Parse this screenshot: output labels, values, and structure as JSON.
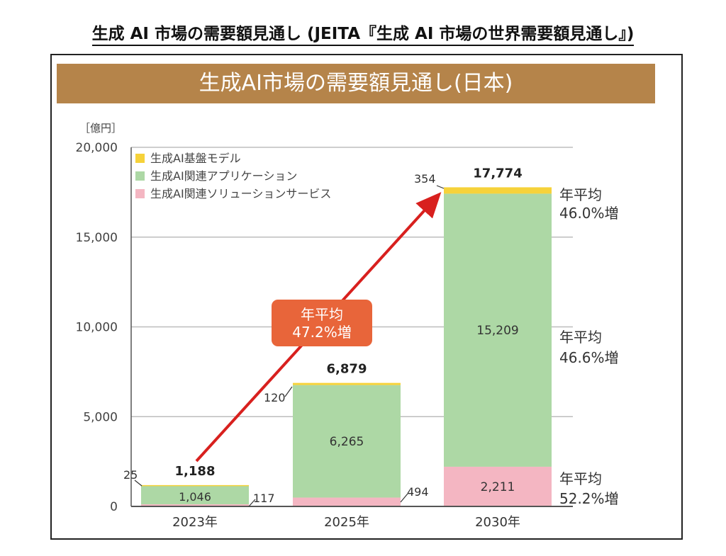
{
  "page_title": "生成 AI 市場の需要額見通し (JEITA『生成 AI 市場の世界需要額見通し』)",
  "chart_data": {
    "type": "bar",
    "stacked": true,
    "title": "生成AI市場の需要額見通し(日本)",
    "unit_label": "［億円］",
    "categories": [
      "2023年",
      "2025年",
      "2030年"
    ],
    "ylim": [
      0,
      20000
    ],
    "yticks": [
      "0",
      "5,000",
      "10,000",
      "15,000",
      "20,000"
    ],
    "grid": true,
    "legend_position": "top-left",
    "series": [
      {
        "name": "生成AI関連ソリューションサービス",
        "color": "#f4b6c2",
        "values": [
          117,
          494,
          2211
        ],
        "labels": [
          "117",
          "494",
          "2,211"
        ]
      },
      {
        "name": "生成AI関連アプリケーション",
        "color": "#add8a5",
        "values": [
          1046,
          6265,
          15209
        ],
        "labels": [
          "1,046",
          "6,265",
          "15,209"
        ]
      },
      {
        "name": "生成AI基盤モデル",
        "color": "#f6d23a",
        "values": [
          25,
          120,
          354
        ],
        "labels": [
          "25",
          "120",
          "354"
        ]
      }
    ],
    "legend_order": [
      "生成AI基盤モデル",
      "生成AI関連アプリケーション",
      "生成AI関連ソリューションサービス"
    ],
    "totals": [
      1188,
      6879,
      17774
    ],
    "total_labels": [
      "1,188",
      "6,879",
      "17,774"
    ],
    "growth_arrow": {
      "line1": "年平均",
      "line2": "47.2%増",
      "color": "#e8653a",
      "arrow_color": "#d8201e"
    },
    "series_growth": [
      {
        "series": "生成AI基盤モデル",
        "line1": "年平均",
        "line2": "46.0%増"
      },
      {
        "series": "生成AI関連アプリケーション",
        "line1": "年平均",
        "line2": "46.6%増"
      },
      {
        "series": "生成AI関連ソリューションサービス",
        "line1": "年平均",
        "line2": "52.2%増"
      }
    ]
  }
}
